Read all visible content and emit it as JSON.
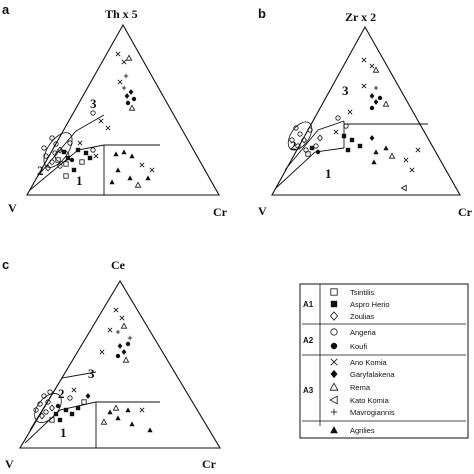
{
  "panels": [
    {
      "id": "a",
      "letter": "a",
      "top": "Th x 5",
      "left": "V",
      "right": "Cr",
      "regions": [
        "1",
        "2",
        "3"
      ]
    },
    {
      "id": "b",
      "letter": "b",
      "top": "Zr x 2",
      "left": "V",
      "right": "Cr",
      "regions": [
        "1",
        "2",
        "3"
      ]
    },
    {
      "id": "c",
      "letter": "c",
      "top": "Ce",
      "left": "V",
      "right": "Cr",
      "regions": [
        "1",
        "2",
        "3"
      ]
    }
  ],
  "legend": {
    "groups": [
      {
        "label": "A1",
        "items": [
          {
            "symbol": "open-square",
            "name": "Tsintilis"
          },
          {
            "symbol": "filled-square",
            "name": "Aspro Herio"
          },
          {
            "symbol": "open-diamond",
            "name": "Zoulias"
          }
        ]
      },
      {
        "label": "A2",
        "items": [
          {
            "symbol": "open-circle",
            "name": "Angeria"
          },
          {
            "symbol": "filled-circle",
            "name": "Koufi"
          }
        ]
      },
      {
        "label": "A3",
        "items": [
          {
            "symbol": "cross-x",
            "name": "Ano Komia"
          },
          {
            "symbol": "filled-diamond",
            "name": "Garyfalakena"
          },
          {
            "symbol": "open-triangle",
            "name": "Rema"
          },
          {
            "symbol": "left-triangle",
            "name": "Kato Komia"
          },
          {
            "symbol": "plus",
            "name": "Mavrogiannis"
          }
        ]
      },
      {
        "label": "",
        "items": [
          {
            "symbol": "filled-triangle",
            "name": "Agrilies"
          }
        ]
      }
    ]
  }
}
